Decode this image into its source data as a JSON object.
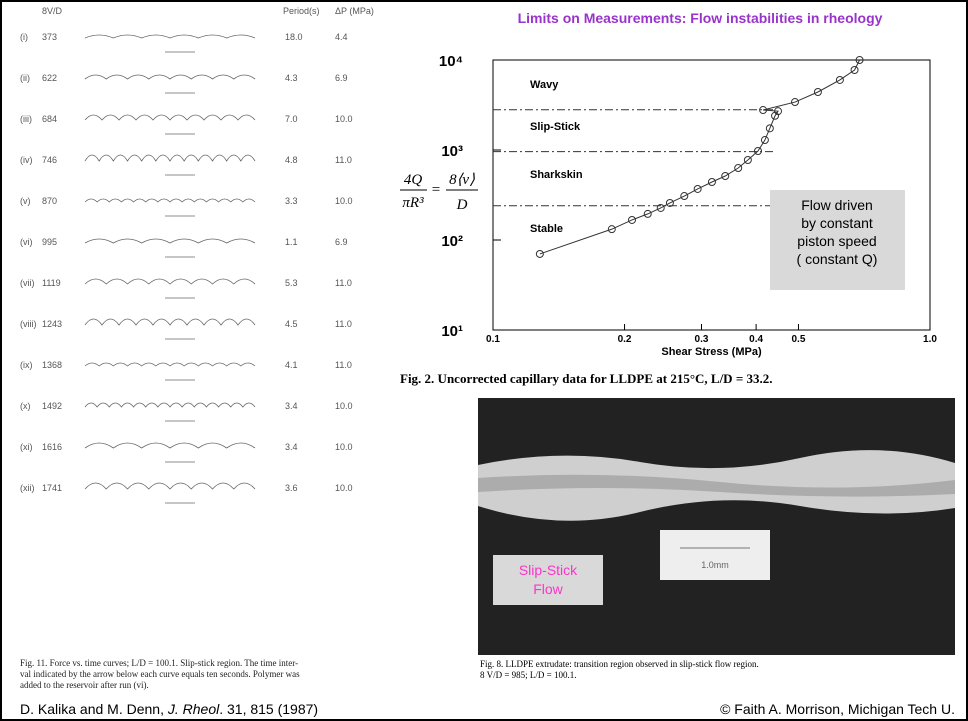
{
  "title": "Limits on Measurements:  Flow instabilities in rheology",
  "left_figure": {
    "headers": [
      "8V/D",
      "Period(s)",
      "ΔP (MPa)"
    ],
    "rows": [
      [
        "(i)",
        "373",
        "18.0",
        "4.4"
      ],
      [
        "(ii)",
        "622",
        "4.3",
        "6.9"
      ],
      [
        "(iii)",
        "684",
        "7.0",
        "10.0"
      ],
      [
        "(iv)",
        "746",
        "4.8",
        "11.0"
      ],
      [
        "(v)",
        "870",
        "3.3",
        "10.0"
      ],
      [
        "(vi)",
        "995",
        "1.1",
        "6.9"
      ],
      [
        "(vii)",
        "1119",
        "5.3",
        "11.0"
      ],
      [
        "(viii)",
        "1243",
        "4.5",
        "11.0"
      ],
      [
        "(ix)",
        "1368",
        "4.1",
        "11.0"
      ],
      [
        "(x)",
        "1492",
        "3.4",
        "10.0"
      ],
      [
        "(xi)",
        "1616",
        "3.4",
        "10.0"
      ],
      [
        "(xii)",
        "1741",
        "3.6",
        "10.0"
      ]
    ],
    "caption": [
      "Fig. 11.   Force vs. time curves; L/D = 100.1. Slip-stick region. The time inter-",
      "val indicated by the arrow below each curve equals ten seconds. Polymer was",
      "added to the reservoir after run (vi)."
    ]
  },
  "chart_data": {
    "type": "line",
    "xlabel": "Shear Stress (MPa)",
    "x": [
      0.128,
      0.187,
      0.208,
      0.226,
      0.242,
      0.254,
      0.274,
      0.294,
      0.317,
      0.34,
      0.364,
      0.383,
      0.404,
      0.419,
      0.43,
      0.442,
      0.449,
      0.415,
      0.491,
      0.554,
      0.622,
      0.672,
      0.69
    ],
    "series": [
      {
        "color": "#333333",
        "values": [
          70,
          132,
          167,
          195,
          227,
          258,
          308,
          369,
          441,
          514,
          631,
          774,
          975,
          1290,
          1740,
          2400,
          2700,
          2780,
          3410,
          4410,
          6000,
          7740,
          10000
        ]
      }
    ],
    "xlim": [
      0.1,
      1.0
    ],
    "ylim": [
      10,
      10000
    ],
    "xlog": true,
    "ylog": true,
    "xticks": [
      0.1,
      0.2,
      0.3,
      0.4,
      0.5,
      {
        "value": 1.0,
        "label": "1.0"
      }
    ],
    "yticks": [
      {
        "value": 10,
        "label": "10¹"
      },
      {
        "value": 100,
        "label": "10²"
      },
      {
        "value": 1000,
        "label": "10³"
      },
      {
        "value": 10000,
        "label": "10⁴"
      }
    ],
    "region_boundaries": [
      2800,
      960,
      240
    ],
    "regions": [
      "Wavy",
      "Slip-Stick",
      "Sharkskin",
      "Stable"
    ]
  },
  "formula": {
    "lhs_num": "4Q",
    "lhs_den": "πR³",
    "eq": "=",
    "rhs_num": "8⟨v⟩",
    "rhs_den": "D"
  },
  "annotation": [
    "Flow driven",
    "by constant",
    "piston speed",
    "( constant Q)"
  ],
  "fig2_caption": "Fig. 2.   Uncorrected capillary data for LLDPE at 215°C, L/D = 33.2.",
  "photo": {
    "scale": "1.0mm",
    "label": [
      "Slip-Stick",
      "Flow"
    ]
  },
  "fig8_caption": [
    "Fig. 8.   LLDPE extrudate: transition region observed in slip-stick flow region.",
    "8 V/D = 985; L/D = 100.1."
  ],
  "footer_left": [
    "D. Kalika and M. Denn, ",
    "J. Rheol",
    ". 31, 815 (1987)"
  ],
  "footer_right": "© Faith A. Morrison, Michigan Tech U."
}
